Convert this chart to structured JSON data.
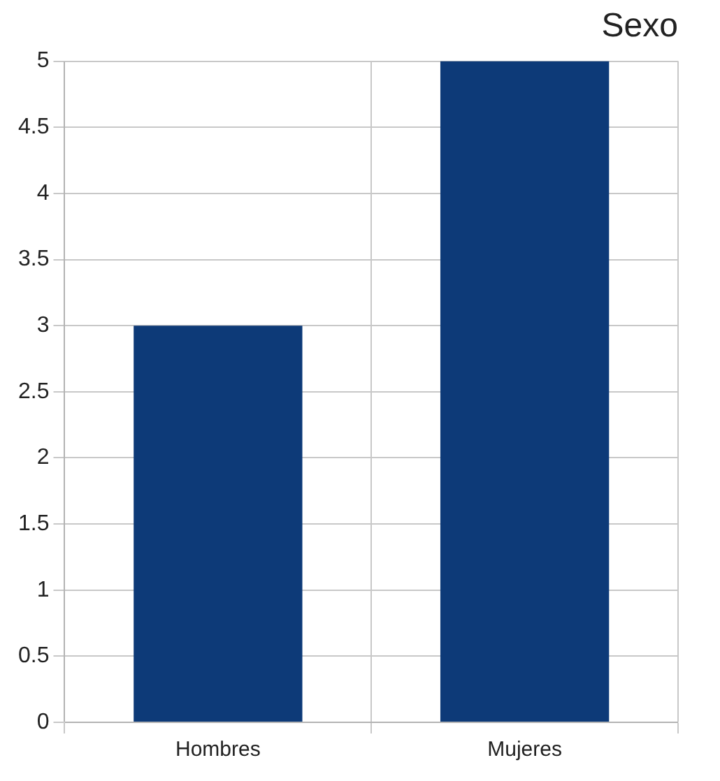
{
  "chart_data": {
    "type": "bar",
    "title": "Sexo",
    "categories": [
      "Hombres",
      "Mujeres"
    ],
    "values": [
      3,
      5
    ],
    "color": "#0d3a78",
    "ylim": [
      0,
      5
    ],
    "yticks": [
      0,
      0.5,
      1,
      1.5,
      2,
      2.5,
      3,
      3.5,
      4,
      4.5,
      5
    ],
    "grid": true
  }
}
